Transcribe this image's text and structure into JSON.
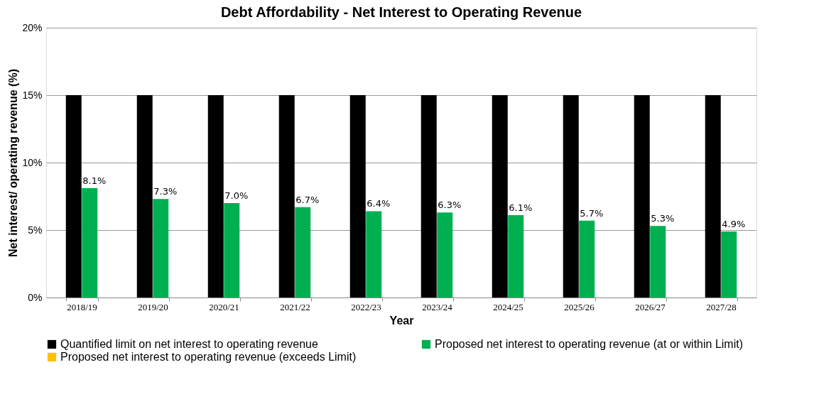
{
  "chart_data": {
    "type": "bar",
    "title": "Debt  Affordability - Net Interest  to Operating Revenue",
    "xlabel": "Year",
    "ylabel": "Net interest/ operating revenue (%)",
    "categories": [
      "2018/19",
      "2019/20",
      "2020/21",
      "2021/22",
      "2022/23",
      "2023/24",
      "2024/25",
      "2025/26",
      "2026/27",
      "2027/28"
    ],
    "series": [
      {
        "name": "Quantified limit on net interest to operating revenue",
        "color": "#000000",
        "values": [
          15,
          15,
          15,
          15,
          15,
          15,
          15,
          15,
          15,
          15
        ]
      },
      {
        "name": "Proposed net interest to operating revenue (at or within Limit)",
        "color": "#00b050",
        "values": [
          8.1,
          7.3,
          7.0,
          6.7,
          6.4,
          6.3,
          6.1,
          5.7,
          5.3,
          4.9
        ],
        "value_labels": [
          "8.1%",
          "7.3%",
          "7.0%",
          "6.7%",
          "6.4%",
          "6.3%",
          "6.1%",
          "5.7%",
          "5.3%",
          "4.9%"
        ]
      },
      {
        "name": "Proposed net interest to operating revenue (exceeds Limit)",
        "color": "#ffc000",
        "values": [
          null,
          null,
          null,
          null,
          null,
          null,
          null,
          null,
          null,
          null
        ]
      }
    ],
    "ylim": [
      0,
      20
    ],
    "yticks": [
      {
        "value": 0,
        "label": "0%"
      },
      {
        "value": 5,
        "label": "5%"
      },
      {
        "value": 10,
        "label": "10%"
      },
      {
        "value": 15,
        "label": "15%"
      },
      {
        "value": 20,
        "label": "20%"
      }
    ],
    "grid": "y",
    "legend": "bottom"
  }
}
